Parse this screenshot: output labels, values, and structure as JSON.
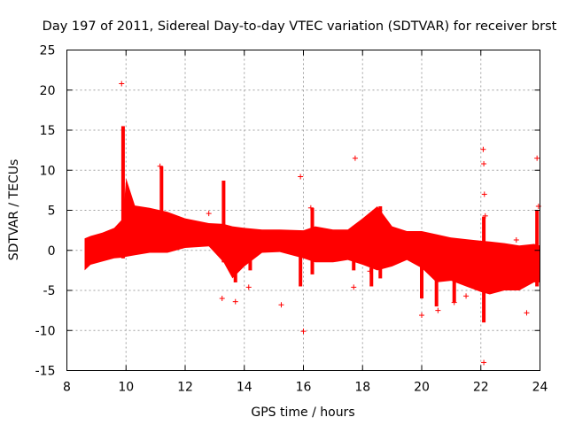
{
  "chart_data": {
    "type": "scatter",
    "title": "Day 197 of 2011, Sidereal Day-to-day VTEC variation (SDTVAR) for receiver brst",
    "xlabel": "GPS time / hours",
    "ylabel": "SDTVAR / TECUs",
    "xlim": [
      8,
      24
    ],
    "ylim": [
      -15,
      25
    ],
    "x_ticks": [
      8,
      10,
      12,
      14,
      16,
      18,
      20,
      22,
      24
    ],
    "y_ticks": [
      -15,
      -10,
      -5,
      0,
      5,
      10,
      15,
      20,
      25
    ],
    "x_tick_labels": [
      "8",
      "10",
      "12",
      "14",
      "16",
      "18",
      "20",
      "22",
      "24"
    ],
    "y_tick_labels": [
      "-15",
      "-10",
      "-5",
      "0",
      "5",
      "10",
      "15",
      "20",
      "25"
    ],
    "grid": true,
    "series_color": "#ff0000",
    "marker": "+",
    "dense_band": {
      "x": [
        8.6,
        8.8,
        9.2,
        9.6,
        9.9,
        10.0,
        10.3,
        10.8,
        11.4,
        12.0,
        12.8,
        13.3,
        13.6,
        14.0,
        14.6,
        15.2,
        16.0,
        16.4,
        17.0,
        17.5,
        18.0,
        18.5,
        19.0,
        19.5,
        20.0,
        20.5,
        21.0,
        21.5,
        22.0,
        22.3,
        22.8,
        23.3,
        23.8,
        24.0
      ],
      "high": [
        1.5,
        1.8,
        2.2,
        2.8,
        4.0,
        9.0,
        5.6,
        5.3,
        4.8,
        4.0,
        3.4,
        3.3,
        3.0,
        2.8,
        2.6,
        2.6,
        2.5,
        3.0,
        2.6,
        2.6,
        4.0,
        5.5,
        3.0,
        2.4,
        2.4,
        2.0,
        1.6,
        1.4,
        1.2,
        1.1,
        0.9,
        0.6,
        0.8,
        0.6
      ],
      "low": [
        -2.5,
        -1.8,
        -1.4,
        -1.0,
        -0.9,
        -0.8,
        -0.6,
        -0.3,
        -0.3,
        0.3,
        0.5,
        -1.5,
        -3.5,
        -2.0,
        -0.3,
        -0.2,
        -1.0,
        -1.5,
        -1.5,
        -1.2,
        -1.8,
        -2.5,
        -2.0,
        -1.2,
        -2.2,
        -4.0,
        -3.8,
        -4.5,
        -5.2,
        -5.5,
        -5.0,
        -5.0,
        -4.0,
        -4.0
      ]
    },
    "spikes": [
      {
        "x": 9.9,
        "ymin": -1.0,
        "ymax": 15.5
      },
      {
        "x": 11.2,
        "ymin": 2.0,
        "ymax": 10.5
      },
      {
        "x": 13.3,
        "ymin": -1.5,
        "ymax": 8.7
      },
      {
        "x": 13.7,
        "ymin": -4.0,
        "ymax": 0.5
      },
      {
        "x": 14.2,
        "ymin": -2.5,
        "ymax": 1.0
      },
      {
        "x": 15.9,
        "ymin": -4.5,
        "ymax": 1.0
      },
      {
        "x": 16.3,
        "ymin": -3.0,
        "ymax": 5.3
      },
      {
        "x": 17.7,
        "ymin": -2.5,
        "ymax": 3.0
      },
      {
        "x": 18.3,
        "ymin": -4.5,
        "ymax": 0.5
      },
      {
        "x": 18.6,
        "ymin": -3.5,
        "ymax": 5.5
      },
      {
        "x": 20.0,
        "ymin": -6.0,
        "ymax": 1.0
      },
      {
        "x": 20.5,
        "ymin": -7.0,
        "ymax": 0.0
      },
      {
        "x": 21.1,
        "ymin": -6.5,
        "ymax": 0.0
      },
      {
        "x": 22.1,
        "ymin": -9.0,
        "ymax": 4.2
      },
      {
        "x": 23.9,
        "ymin": -4.5,
        "ymax": 5.0
      }
    ],
    "outliers": {
      "x": [
        9.85,
        11.15,
        12.8,
        13.25,
        13.7,
        14.15,
        15.25,
        15.9,
        16.0,
        16.25,
        17.75,
        17.7,
        18.25,
        20.0,
        20.55,
        21.1,
        21.5,
        22.08,
        22.1,
        22.12,
        22.1,
        22.15,
        23.2,
        23.55,
        23.9,
        23.95
      ],
      "y": [
        20.8,
        10.5,
        4.6,
        -6.0,
        -6.4,
        -4.6,
        -6.8,
        9.2,
        -10.1,
        5.3,
        11.5,
        -4.6,
        -2.6,
        -8.1,
        -7.5,
        -6.5,
        -5.7,
        12.6,
        10.8,
        7.0,
        -14.0,
        4.3,
        1.3,
        -7.8,
        11.5,
        5.5
      ]
    }
  }
}
